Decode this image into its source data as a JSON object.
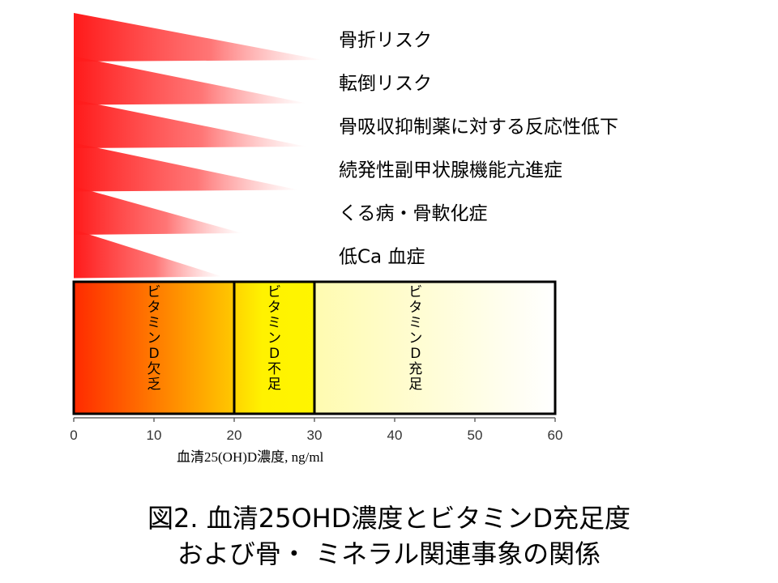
{
  "risks": [
    {
      "label": "骨折リスク",
      "vitamin_d_extent": 31
    },
    {
      "label": "転倒リスク",
      "vitamin_d_extent": 29
    },
    {
      "label": "骨吸収抑制薬に対する反応性低下",
      "vitamin_d_extent": 29
    },
    {
      "label": "続発性副甲状腺機能亢進症",
      "vitamin_d_extent": 28
    },
    {
      "label": "くる病・骨軟化症",
      "vitamin_d_extent": 21
    },
    {
      "label": "低Ca 血症",
      "vitamin_d_extent": 18.5
    }
  ],
  "zones": [
    {
      "label": "ビタミンD欠乏",
      "from": 0,
      "to": 20
    },
    {
      "label": "ビタミンD不足",
      "from": 20,
      "to": 30
    },
    {
      "label": "ビタミンD充足",
      "from": 30,
      "to": 60
    }
  ],
  "axis": {
    "ticks": [
      0,
      10,
      20,
      30,
      40,
      50,
      60
    ],
    "min": 0,
    "max": 60,
    "title": "血清25(OH)D濃度, ng/ml"
  },
  "colors": {
    "risk": "#ff1a1a",
    "deficient_start": "#ff2a00",
    "deficient_end": "#ffc800",
    "insufficient": "#fff200",
    "outline": "#000000"
  },
  "caption": {
    "line1": "図2. 血清25OHD濃度とビタミンD充足度",
    "line2": "および骨・ ミネラル関連事象の関係"
  }
}
